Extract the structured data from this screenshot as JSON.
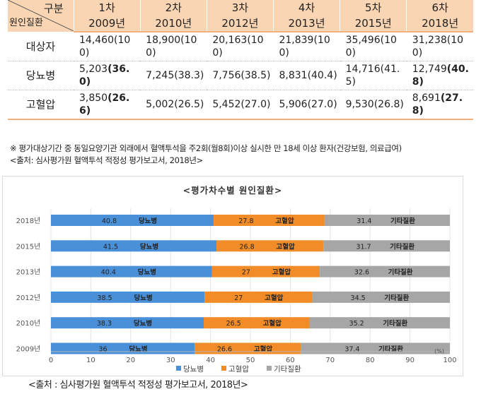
{
  "table": {
    "corner_top": "구분",
    "corner_bottom": "원인질환",
    "rounds": [
      "1차",
      "2차",
      "3차",
      "4차",
      "5차",
      "6차"
    ],
    "years": [
      "2009년",
      "2010년",
      "2012년",
      "2013년",
      "2015년",
      "2018년"
    ],
    "rows": [
      {
        "label": "대상자",
        "cells": [
          {
            "count": "14,460",
            "pct": "(100)",
            "bold": false
          },
          {
            "count": "18,900",
            "pct": "(100)",
            "bold": false
          },
          {
            "count": "20,163",
            "pct": "(100)",
            "bold": false
          },
          {
            "count": "21,839",
            "pct": "(100)",
            "bold": false
          },
          {
            "count": "35,496",
            "pct": "(100)",
            "bold": false
          },
          {
            "count": "31,238",
            "pct": "(100)",
            "bold": false
          }
        ]
      },
      {
        "label": "당뇨병",
        "cells": [
          {
            "count": "5,203",
            "pct": "(36.0)",
            "bold": true
          },
          {
            "count": "7,245",
            "pct": "(38.3)",
            "bold": false
          },
          {
            "count": "7,756",
            "pct": "(38.5)",
            "bold": false
          },
          {
            "count": "8,831",
            "pct": "(40.4)",
            "bold": false
          },
          {
            "count": "14,716",
            "pct": "(41.5)",
            "bold": false
          },
          {
            "count": "12,749",
            "pct": "(40.8)",
            "bold": true
          }
        ]
      },
      {
        "label": "고혈압",
        "cells": [
          {
            "count": "3,850",
            "pct": "(26.6)",
            "bold": true
          },
          {
            "count": "5,002",
            "pct": "(26.5)",
            "bold": false
          },
          {
            "count": "5,452",
            "pct": "(27.0)",
            "bold": false
          },
          {
            "count": "5,906",
            "pct": "(27.0)",
            "bold": false
          },
          {
            "count": "9,530",
            "pct": "(26.8)",
            "bold": false
          },
          {
            "count": "8,691",
            "pct": "(27.8)",
            "bold": true
          }
        ]
      }
    ]
  },
  "note": "※ 평가대상기간 중 동일요양기관 외래에서 혈액투석을 주2회(월8회)이상 실시한 만 18세 이상 환자(건강보험, 의료급여)",
  "source_top": "<출처: 심사평가원 혈액투석 적정성 평가보고서, 2018년>",
  "source_bottom": "<출처 : 심사평가원 혈액투석 적정성 평가보고서, 2018년>",
  "chart_data": {
    "type": "bar",
    "orientation": "horizontal",
    "stacked": true,
    "title": "<평가차수별 원인질환>",
    "categories": [
      "2018년",
      "2015년",
      "2013년",
      "2012년",
      "2010년",
      "2009년"
    ],
    "series": [
      {
        "name": "당뇨병",
        "color": "#4a90d9",
        "values": [
          40.8,
          41.5,
          40.4,
          38.5,
          38.3,
          36
        ]
      },
      {
        "name": "고혈압",
        "color": "#f28c28",
        "values": [
          27.8,
          26.8,
          27,
          27,
          26.5,
          26.6
        ]
      },
      {
        "name": "기타질환",
        "color": "#a6a6a6",
        "values": [
          31.4,
          31.7,
          32.6,
          34.5,
          35.2,
          37.4
        ]
      }
    ],
    "xlim": [
      0,
      100
    ],
    "xticks": [
      0,
      10,
      20,
      30,
      40,
      50,
      60,
      70,
      80,
      90,
      100
    ],
    "unit_label": "(%)",
    "legend_position": "bottom",
    "grid": "vertical"
  }
}
